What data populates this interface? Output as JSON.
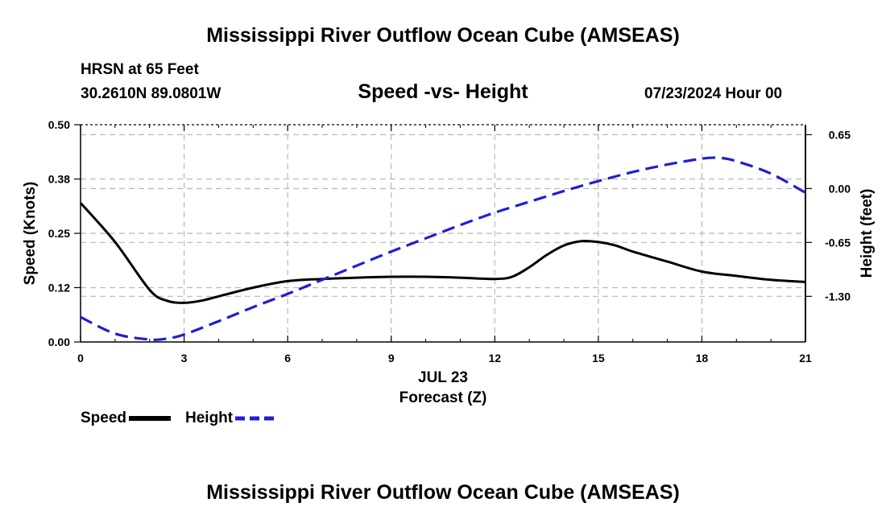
{
  "header": {
    "title": "Mississippi River Outflow Ocean Cube (AMSEAS)",
    "station": "HRSN at 65 Feet",
    "coordinates": "30.2610N  89.0801W",
    "plot_title": "Speed -vs- Height",
    "datetime": "07/23/2024 Hour 00"
  },
  "footer": {
    "title": "Mississippi River Outflow Ocean Cube (AMSEAS)"
  },
  "chart_data": {
    "type": "line",
    "title": "Speed -vs- Height",
    "xlabel_date": "JUL 23",
    "xlabel": "Forecast (Z)",
    "ylabel": "Speed (Knots)",
    "y2label": "Height (feet)",
    "xlim": [
      0,
      21
    ],
    "ylim": [
      0,
      0.5
    ],
    "y2lim": [
      -1.85,
      0.77
    ],
    "x_ticks": [
      0,
      3,
      6,
      9,
      12,
      15,
      18,
      21
    ],
    "x_tick_labels": [
      "0",
      "3",
      "6",
      "9",
      "12",
      "15",
      "18",
      "21"
    ],
    "y_ticks": [
      0,
      0.125,
      0.25,
      0.375,
      0.5
    ],
    "y_tick_labels": [
      "0.00",
      "0.12",
      "0.25",
      "0.38",
      "0.50"
    ],
    "y2_ticks": [
      0.65,
      0,
      -0.65,
      -1.3
    ],
    "y2_tick_labels": [
      "0.65",
      "0.00",
      "-0.65",
      "-1.30"
    ],
    "grid": true,
    "legend_placement": "bottom-left",
    "series": [
      {
        "name": "Speed",
        "axis": "left",
        "color": "#000000",
        "style": "solid",
        "x": [
          0,
          1,
          2,
          2.5,
          3,
          3.5,
          4,
          5,
          6,
          7,
          8,
          9,
          10,
          11,
          12,
          12.5,
          13,
          13.5,
          14,
          14.5,
          15,
          15.5,
          16,
          17,
          18,
          19,
          20,
          21
        ],
        "values": [
          0.32,
          0.23,
          0.12,
          0.095,
          0.09,
          0.095,
          0.105,
          0.125,
          0.14,
          0.145,
          0.148,
          0.15,
          0.15,
          0.148,
          0.145,
          0.15,
          0.172,
          0.2,
          0.222,
          0.232,
          0.23,
          0.222,
          0.208,
          0.185,
          0.162,
          0.152,
          0.143,
          0.138
        ]
      },
      {
        "name": "Height",
        "axis": "right",
        "color": "#1f1fd0",
        "style": "dashed",
        "x": [
          0,
          1,
          2,
          2.5,
          3,
          4,
          5,
          6,
          7,
          8,
          9,
          10,
          11,
          12,
          13,
          14,
          15,
          16,
          17,
          18,
          18.5,
          19,
          20,
          21
        ],
        "values": [
          -1.55,
          -1.75,
          -1.82,
          -1.81,
          -1.76,
          -1.6,
          -1.43,
          -1.27,
          -1.1,
          -0.93,
          -0.76,
          -0.6,
          -0.44,
          -0.29,
          -0.16,
          -0.03,
          0.09,
          0.2,
          0.29,
          0.36,
          0.37,
          0.33,
          0.18,
          -0.05
        ]
      }
    ]
  }
}
